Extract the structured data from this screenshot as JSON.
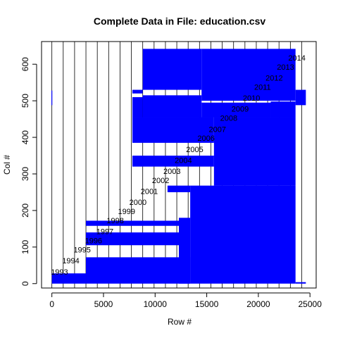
{
  "chart_data": {
    "type": "bar",
    "title": "Complete Data in File: education.csv",
    "xlabel": "Row #",
    "ylabel": "Col #",
    "xlim": [
      -1000,
      25600
    ],
    "ylim": [
      -12,
      662
    ],
    "x_ticks": [
      0,
      5000,
      10000,
      15000,
      20000,
      25000
    ],
    "y_ticks": [
      0,
      100,
      200,
      300,
      400,
      500,
      600
    ],
    "fill_color": "#0000FF",
    "line_color": "#000000",
    "year_boundaries": [
      0,
      1100,
      2200,
      3300,
      4400,
      5500,
      6600,
      7700,
      8800,
      9900,
      11000,
      12100,
      13200,
      14300,
      15400,
      16500,
      17600,
      18700,
      19800,
      20900,
      22000,
      23100,
      24200
    ],
    "year_labels": [
      {
        "text": "1993",
        "x": -100,
        "y": 25
      },
      {
        "text": "1994",
        "x": 1000,
        "y": 55
      },
      {
        "text": "1995",
        "x": 2100,
        "y": 85
      },
      {
        "text": "1996",
        "x": 3200,
        "y": 110
      },
      {
        "text": "1997",
        "x": 4300,
        "y": 135
      },
      {
        "text": "1998",
        "x": 5300,
        "y": 165
      },
      {
        "text": "1999",
        "x": 6400,
        "y": 190
      },
      {
        "text": "2000",
        "x": 7500,
        "y": 215
      },
      {
        "text": "2001",
        "x": 8600,
        "y": 245
      },
      {
        "text": "2002",
        "x": 9700,
        "y": 275
      },
      {
        "text": "2003",
        "x": 10800,
        "y": 300
      },
      {
        "text": "2004",
        "x": 11900,
        "y": 330
      },
      {
        "text": "2005",
        "x": 13000,
        "y": 360
      },
      {
        "text": "2006",
        "x": 14100,
        "y": 390
      },
      {
        "text": "2007",
        "x": 15200,
        "y": 415
      },
      {
        "text": "2008",
        "x": 16300,
        "y": 445
      },
      {
        "text": "2009",
        "x": 17400,
        "y": 470
      },
      {
        "text": "2010",
        "x": 18500,
        "y": 500
      },
      {
        "text": "2011",
        "x": 19600,
        "y": 530
      },
      {
        "text": "2012",
        "x": 20700,
        "y": 555
      },
      {
        "text": "2013",
        "x": 21800,
        "y": 585
      },
      {
        "text": "2014",
        "x": 22900,
        "y": 610
      }
    ],
    "data_blocks": [
      {
        "x0": 0,
        "x1": 3300,
        "y0": 0,
        "y1": 28
      },
      {
        "x0": 3300,
        "x1": 13400,
        "y0": 0,
        "y1": 72
      },
      {
        "x0": 3300,
        "x1": 12300,
        "y0": 105,
        "y1": 140
      },
      {
        "x0": 3300,
        "x1": 12300,
        "y0": 158,
        "y1": 172
      },
      {
        "x0": 12300,
        "x1": 13400,
        "y0": 0,
        "y1": 180
      },
      {
        "x0": 13400,
        "x1": 23600,
        "y0": 0,
        "y1": 268
      },
      {
        "x0": 11200,
        "x1": 13400,
        "y0": 250,
        "y1": 268
      },
      {
        "x0": 7800,
        "x1": 15700,
        "y0": 320,
        "y1": 350
      },
      {
        "x0": 7800,
        "x1": 15700,
        "y0": 385,
        "y1": 455
      },
      {
        "x0": 15700,
        "x1": 23600,
        "y0": 268,
        "y1": 455
      },
      {
        "x0": 7800,
        "x1": 8800,
        "y0": 455,
        "y1": 510
      },
      {
        "x0": 8800,
        "x1": 14500,
        "y0": 455,
        "y1": 515
      },
      {
        "x0": 7800,
        "x1": 8800,
        "y0": 520,
        "y1": 530
      },
      {
        "x0": 14500,
        "x1": 21200,
        "y0": 455,
        "y1": 495
      },
      {
        "x0": 21200,
        "x1": 23600,
        "y0": 455,
        "y1": 498
      },
      {
        "x0": 8800,
        "x1": 14500,
        "y0": 530,
        "y1": 642
      },
      {
        "x0": 14500,
        "x1": 23600,
        "y0": 500,
        "y1": 642
      },
      {
        "x0": 23600,
        "x1": 24600,
        "y0": 488,
        "y1": 530
      },
      {
        "x0": 23600,
        "x1": 24600,
        "y0": 0,
        "y1": 4
      },
      {
        "x0": -40,
        "x1": 40,
        "y0": 488,
        "y1": 528
      }
    ]
  }
}
